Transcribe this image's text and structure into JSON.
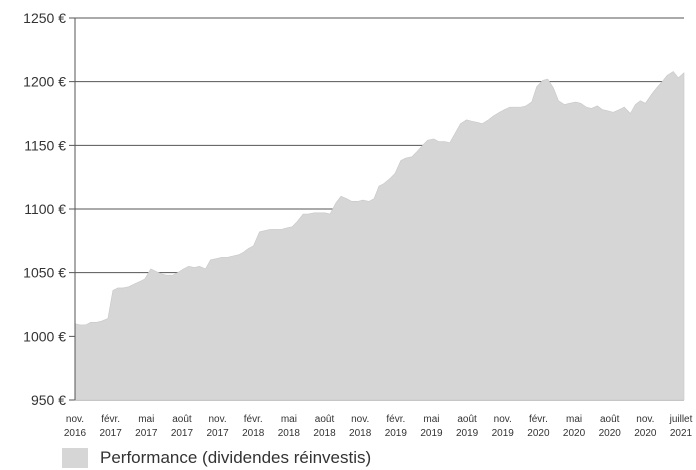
{
  "chart_data": {
    "type": "area",
    "title": "",
    "xlabel": "",
    "ylabel": "",
    "ylim": [
      950,
      1250
    ],
    "y_ticks": [
      950,
      1000,
      1050,
      1100,
      1150,
      1200,
      1250
    ],
    "y_tick_suffix": " €",
    "grid": "horizontal",
    "legend_position": "bottom-left",
    "fill_color": "#d6d6d6",
    "x_tick_labels": [
      {
        "month": "nov.",
        "year": "2016"
      },
      {
        "month": "févr.",
        "year": "2017"
      },
      {
        "month": "mai",
        "year": "2017"
      },
      {
        "month": "août",
        "year": "2017"
      },
      {
        "month": "nov.",
        "year": "2017"
      },
      {
        "month": "févr.",
        "year": "2018"
      },
      {
        "month": "mai",
        "year": "2018"
      },
      {
        "month": "août",
        "year": "2018"
      },
      {
        "month": "nov.",
        "year": "2018"
      },
      {
        "month": "févr.",
        "year": "2019"
      },
      {
        "month": "mai",
        "year": "2019"
      },
      {
        "month": "août",
        "year": "2019"
      },
      {
        "month": "nov.",
        "year": "2019"
      },
      {
        "month": "févr.",
        "year": "2020"
      },
      {
        "month": "mai",
        "year": "2020"
      },
      {
        "month": "août",
        "year": "2020"
      },
      {
        "month": "nov.",
        "year": "2020"
      },
      {
        "month": "juillet",
        "year": "2021"
      }
    ],
    "series": [
      {
        "name": "Performance (dividendes réinvestis)",
        "x": [
          "2016-11-01",
          "2016-11-15",
          "2016-12-01",
          "2016-12-15",
          "2017-01-01",
          "2017-01-15",
          "2017-02-01",
          "2017-02-15",
          "2017-03-01",
          "2017-03-15",
          "2017-04-01",
          "2017-04-15",
          "2017-05-01",
          "2017-05-15",
          "2017-06-01",
          "2017-06-15",
          "2017-07-01",
          "2017-07-15",
          "2017-08-01",
          "2017-08-15",
          "2017-09-01",
          "2017-09-15",
          "2017-10-01",
          "2017-10-15",
          "2017-11-01",
          "2017-11-15",
          "2017-12-01",
          "2017-12-15",
          "2018-01-01",
          "2018-01-15",
          "2018-02-01",
          "2018-02-15",
          "2018-03-01",
          "2018-03-15",
          "2018-04-01",
          "2018-04-15",
          "2018-05-01",
          "2018-05-15",
          "2018-06-01",
          "2018-06-15",
          "2018-07-01",
          "2018-07-15",
          "2018-08-01",
          "2018-08-15",
          "2018-09-01",
          "2018-09-15",
          "2018-10-01",
          "2018-10-15",
          "2018-11-01",
          "2018-11-15",
          "2018-12-01",
          "2018-12-15",
          "2019-01-01",
          "2019-01-15",
          "2019-02-01",
          "2019-02-15",
          "2019-03-01",
          "2019-03-15",
          "2019-04-01",
          "2019-04-15",
          "2019-05-01",
          "2019-05-15",
          "2019-06-01",
          "2019-06-15",
          "2019-07-01",
          "2019-07-15",
          "2019-08-01",
          "2019-08-15",
          "2019-09-01",
          "2019-09-15",
          "2019-10-01",
          "2019-10-15",
          "2019-11-01",
          "2019-11-15",
          "2019-12-01",
          "2019-12-15",
          "2020-01-01",
          "2020-01-15",
          "2020-02-01",
          "2020-02-15",
          "2020-03-01",
          "2020-03-15",
          "2020-04-01",
          "2020-04-15",
          "2020-05-01",
          "2020-05-15",
          "2020-06-01",
          "2020-06-15",
          "2020-07-01",
          "2020-07-15",
          "2020-08-01",
          "2020-08-15",
          "2020-09-01",
          "2020-09-15",
          "2020-10-01",
          "2020-10-15",
          "2020-11-01",
          "2020-11-15",
          "2020-12-01",
          "2020-12-15",
          "2021-01-01",
          "2021-01-15",
          "2021-02-01",
          "2021-02-15",
          "2021-03-01",
          "2021-03-15",
          "2021-04-01",
          "2021-04-15",
          "2021-05-01",
          "2021-05-15",
          "2021-06-01",
          "2021-06-15",
          "2021-07-01"
        ],
        "values": [
          1010,
          1009,
          1009,
          1011,
          1011,
          1012,
          1014,
          1036,
          1038,
          1038,
          1039,
          1041,
          1043,
          1045,
          1053,
          1051,
          1049,
          1048,
          1048,
          1050,
          1053,
          1055,
          1054,
          1055,
          1053,
          1060,
          1061,
          1062,
          1062,
          1063,
          1064,
          1066,
          1069,
          1071,
          1082,
          1083,
          1084,
          1084,
          1084,
          1085,
          1086,
          1090,
          1096,
          1096,
          1097,
          1097,
          1097,
          1096,
          1105,
          1110,
          1108,
          1106,
          1106,
          1107,
          1106,
          1108,
          1118,
          1120,
          1124,
          1128,
          1138,
          1140,
          1141,
          1145,
          1150,
          1154,
          1155,
          1153,
          1153,
          1152,
          1160,
          1167,
          1170,
          1169,
          1168,
          1167,
          1170,
          1173,
          1176,
          1178,
          1180,
          1180,
          1180,
          1181,
          1184,
          1196,
          1201,
          1202,
          1195,
          1185,
          1182,
          1183,
          1184,
          1183,
          1180,
          1179,
          1181,
          1178,
          1177,
          1176,
          1178,
          1180,
          1175,
          1182,
          1185,
          1183,
          1190,
          1195,
          1200,
          1205,
          1208,
          1203,
          1207
        ]
      }
    ]
  }
}
